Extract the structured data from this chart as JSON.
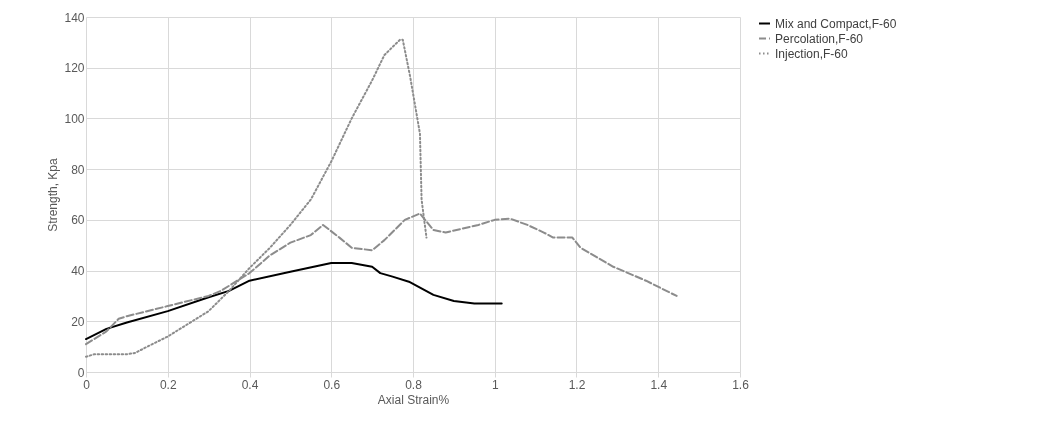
{
  "chart_data": {
    "type": "line",
    "xlabel": "Axial Strain%",
    "ylabel": "Strength, Kpa",
    "xlim": [
      0,
      1.6
    ],
    "xticks": [
      0,
      0.2,
      0.4,
      0.6,
      0.8,
      1,
      1.2,
      1.4,
      1.6
    ],
    "ylim": [
      0,
      140
    ],
    "yticks": [
      0,
      20,
      40,
      60,
      80,
      100,
      120,
      140
    ],
    "grid": true,
    "legend": "right",
    "series": [
      {
        "name": "Mix and Compact,F-60",
        "color": "#000000",
        "line_style": "solid",
        "x": [
          0,
          0.05,
          0.1,
          0.2,
          0.3,
          0.35,
          0.4,
          0.5,
          0.6,
          0.65,
          0.7,
          0.72,
          0.75,
          0.79,
          0.85,
          0.9,
          0.95,
          1.017
        ],
        "values": [
          13,
          17,
          19.5,
          24,
          29.5,
          32,
          36,
          39.5,
          43,
          43,
          41.5,
          39,
          37.6,
          35.6,
          30.4,
          28,
          27,
          27
        ]
      },
      {
        "name": "Percolation,F-60",
        "color": "#8c8c8c",
        "line_style": "dashed",
        "x": [
          0,
          0.05,
          0.08,
          0.1,
          0.2,
          0.3,
          0.33,
          0.4,
          0.45,
          0.5,
          0.55,
          0.58,
          0.62,
          0.65,
          0.7,
          0.73,
          0.78,
          0.817,
          0.85,
          0.88,
          0.96,
          1.0,
          1.037,
          1.08,
          1.12,
          1.143,
          1.19,
          1.21,
          1.29,
          1.37,
          1.445
        ],
        "values": [
          11,
          16,
          21,
          22,
          26,
          30,
          32,
          39,
          46,
          51,
          54,
          58,
          53,
          49,
          48,
          52,
          60,
          62.5,
          56,
          55,
          58,
          60,
          60.5,
          58,
          55,
          53,
          53,
          49,
          41.5,
          36,
          30
        ]
      },
      {
        "name": "Injection,F-60",
        "color": "#8c8c8c",
        "line_style": "dotted",
        "x": [
          0,
          0.02,
          0.1,
          0.12,
          0.15,
          0.2,
          0.25,
          0.3,
          0.35,
          0.4,
          0.45,
          0.5,
          0.55,
          0.6,
          0.65,
          0.7,
          0.73,
          0.768,
          0.775,
          0.793,
          0.817,
          0.821,
          0.833
        ],
        "values": [
          6,
          7,
          7,
          7.5,
          10,
          14,
          19,
          24,
          32,
          41,
          49,
          58,
          68,
          83,
          100,
          115,
          125,
          131,
          131,
          116.5,
          94,
          68,
          53
        ]
      }
    ]
  }
}
